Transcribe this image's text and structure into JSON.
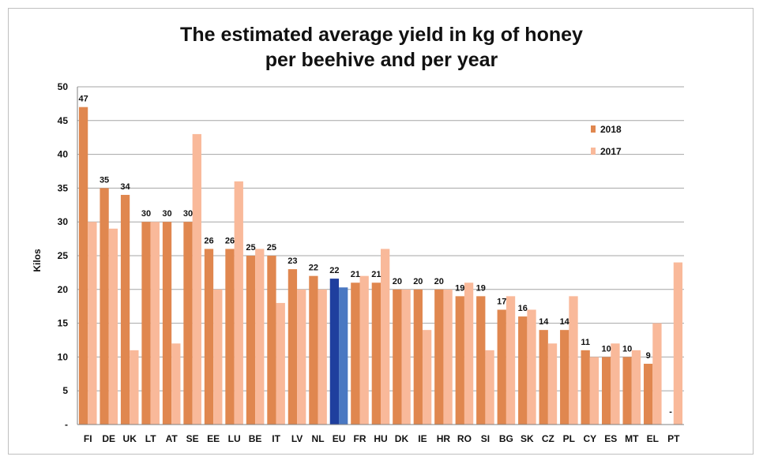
{
  "chart_data": {
    "type": "bar",
    "title_line1": "The estimated average yield in kg of honey",
    "title_line2": "per beehive and per year",
    "ylabel": "Kilos",
    "xlabel": "",
    "ylim": [
      0,
      50
    ],
    "yticks": [
      "-",
      "5",
      "10",
      "15",
      "20",
      "25",
      "30",
      "35",
      "40",
      "45",
      "50"
    ],
    "grid": true,
    "legend_position": "top-right",
    "categories": [
      "FI",
      "DE",
      "UK",
      "LT",
      "AT",
      "SE",
      "EE",
      "LU",
      "BE",
      "IT",
      "LV",
      "NL",
      "EU",
      "FR",
      "HU",
      "DK",
      "IE",
      "HR",
      "RO",
      "SI",
      "BG",
      "SK",
      "CZ",
      "PL",
      "CY",
      "ES",
      "MT",
      "EL",
      "PT"
    ],
    "series": [
      {
        "name": "2018",
        "color": "#e0874f",
        "values": [
          47,
          35,
          34,
          30,
          30,
          30,
          26,
          26,
          25,
          25,
          23,
          22,
          21.6,
          21,
          21,
          20,
          20,
          20,
          19,
          19,
          17,
          16,
          14,
          14,
          11,
          10,
          10,
          9,
          0
        ],
        "labels": [
          "47",
          "35",
          "34",
          "30",
          "30",
          "30",
          "26",
          "26",
          "25",
          "25",
          "23",
          "22",
          "22",
          "21",
          "21",
          "20",
          "20",
          "20",
          "19",
          "19",
          "17",
          "16",
          "14",
          "14",
          "11",
          "10",
          "10",
          "9",
          "-"
        ]
      },
      {
        "name": "2017",
        "color": "#f9b99a",
        "values": [
          30,
          29,
          11,
          30,
          12,
          43,
          20,
          36,
          26,
          18,
          20,
          20,
          20.3,
          22,
          26,
          20,
          14,
          20,
          21,
          11,
          19,
          17,
          12,
          19,
          10,
          12,
          11,
          15,
          24
        ]
      }
    ],
    "highlight": {
      "category": "EU",
      "color_2018": "#1f3f9e",
      "color_2017": "#4a78c2"
    }
  }
}
